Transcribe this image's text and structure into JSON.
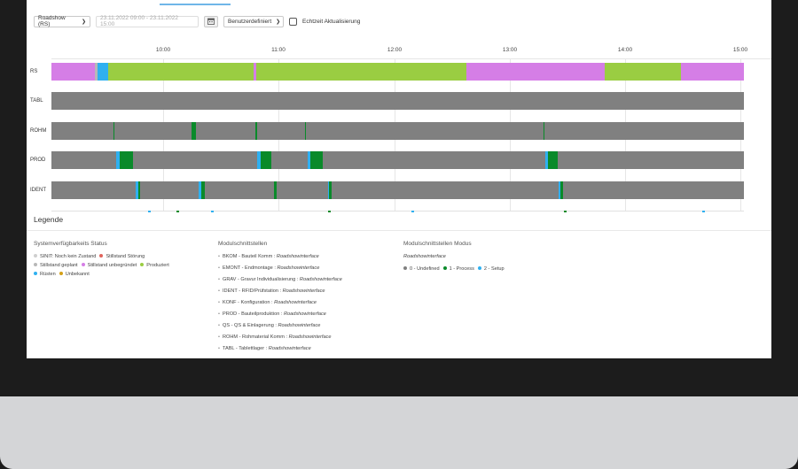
{
  "toolbar": {
    "station_select": "Roadshow (RS)",
    "date_range": "23.11.2022 09:00 - 23.11.2022 15:00",
    "period_select": "Benutzerdefiniert",
    "realtime_label": "Echtzeit Aktualisierung"
  },
  "timeline": {
    "time_ticks": [
      "10:00",
      "11:00",
      "12:00",
      "13:00",
      "14:00",
      "15:00"
    ],
    "rows": [
      {
        "label": "RS",
        "segments": [
          {
            "state": "Stillstand unbegründet",
            "start": 0,
            "end": 0.063
          },
          {
            "state": "Stillstand geplant",
            "start": 0.063,
            "end": 0.067
          },
          {
            "state": "Rüsten",
            "start": 0.067,
            "end": 0.082
          },
          {
            "state": "Produziert",
            "start": 0.082,
            "end": 0.292
          },
          {
            "state": "Stillstand unbegründet",
            "start": 0.292,
            "end": 0.296
          },
          {
            "state": "Produziert",
            "start": 0.296,
            "end": 0.599
          },
          {
            "state": "Stillstand unbegründet",
            "start": 0.599,
            "end": 0.799
          },
          {
            "state": "Produziert",
            "start": 0.799,
            "end": 0.909
          },
          {
            "state": "Stillstand unbegründet",
            "start": 0.909,
            "end": 1.0
          }
        ]
      },
      {
        "label": "TABL",
        "segments": []
      },
      {
        "label": "ROHM",
        "segments": [
          {
            "state": "1 - Process",
            "start": 0.089,
            "end": 0.091
          },
          {
            "state": "1 - Process",
            "start": 0.202,
            "end": 0.209
          },
          {
            "state": "1 - Process",
            "start": 0.295,
            "end": 0.297
          },
          {
            "state": "1 - Process",
            "start": 0.366,
            "end": 0.368
          },
          {
            "state": "1 - Process",
            "start": 0.71,
            "end": 0.712
          }
        ]
      },
      {
        "label": "PROD",
        "segments": [
          {
            "state": "2 - Setup",
            "start": 0.094,
            "end": 0.098
          },
          {
            "state": "1 - Process",
            "start": 0.098,
            "end": 0.118
          },
          {
            "state": "2 - Setup",
            "start": 0.297,
            "end": 0.302
          },
          {
            "state": "1 - Process",
            "start": 0.302,
            "end": 0.317
          },
          {
            "state": "2 - Setup",
            "start": 0.37,
            "end": 0.374
          },
          {
            "state": "1 - Process",
            "start": 0.374,
            "end": 0.392
          },
          {
            "state": "2 - Setup",
            "start": 0.713,
            "end": 0.717
          },
          {
            "state": "1 - Process",
            "start": 0.717,
            "end": 0.731
          }
        ]
      },
      {
        "label": "IDENT",
        "segments": [
          {
            "state": "2 - Setup",
            "start": 0.122,
            "end": 0.125
          },
          {
            "state": "1 - Process",
            "start": 0.125,
            "end": 0.128
          },
          {
            "state": "2 - Setup",
            "start": 0.213,
            "end": 0.216
          },
          {
            "state": "1 - Process",
            "start": 0.216,
            "end": 0.221
          },
          {
            "state": "1 - Process",
            "start": 0.321,
            "end": 0.325
          },
          {
            "state": "2 - Setup",
            "start": 0.399,
            "end": 0.401
          },
          {
            "state": "1 - Process",
            "start": 0.401,
            "end": 0.405
          },
          {
            "state": "2 - Setup",
            "start": 0.732,
            "end": 0.735
          },
          {
            "state": "1 - Process",
            "start": 0.735,
            "end": 0.739
          }
        ]
      }
    ]
  },
  "legend": {
    "title": "Legende",
    "status": {
      "heading": "Systemverfügbarkeits Status",
      "items": [
        {
          "label": "SINIT: Noch kein Zustand",
          "color": "#cfcfcf"
        },
        {
          "label": "Stillstand Störung",
          "color": "#e0645c"
        },
        {
          "label": "Stillstand geplant",
          "color": "#b8b8b8"
        },
        {
          "label": "Stillstand unbegründet",
          "color": "#d57ee6"
        },
        {
          "label": "Produziert",
          "color": "#9acd42"
        },
        {
          "label": "Rüsten",
          "color": "#2fb0f0"
        },
        {
          "label": "Unbekannt",
          "color": "#d4a017"
        }
      ]
    },
    "interfaces": {
      "heading": "Modulschnittstellen",
      "items": [
        {
          "name": "BKOM - Bauteil Komm",
          "iface": "Roadshowinterface"
        },
        {
          "name": "EMONT - Endmontage",
          "iface": "Roadshowinterface"
        },
        {
          "name": "GRAV - Gravur Individualisierung",
          "iface": "Roadshowinterface"
        },
        {
          "name": "IDENT - RFID/Prüfstation",
          "iface": "Roadshowinterface"
        },
        {
          "name": "KONF - Konfiguration",
          "iface": "Roadshowinterface"
        },
        {
          "name": "PROD - Bauteilproduktion",
          "iface": "Roadshowinterface"
        },
        {
          "name": "QS - QS & Einlagerung",
          "iface": "Roadshowinterface"
        },
        {
          "name": "ROHM - Rohmaterial Komm",
          "iface": "Roadshowinterface"
        },
        {
          "name": "TABL - Tablettlager",
          "iface": "Roadshowinterface"
        }
      ]
    },
    "modes": {
      "heading": "Modulschnittstellen Modus",
      "subheading": "Roadshowinterface",
      "items": [
        {
          "label": "0 - Undefined",
          "color": "#808080"
        },
        {
          "label": "1 - Process",
          "color": "#0a8a2a"
        },
        {
          "label": "2 - Setup",
          "color": "#2fb0f0"
        }
      ]
    }
  }
}
